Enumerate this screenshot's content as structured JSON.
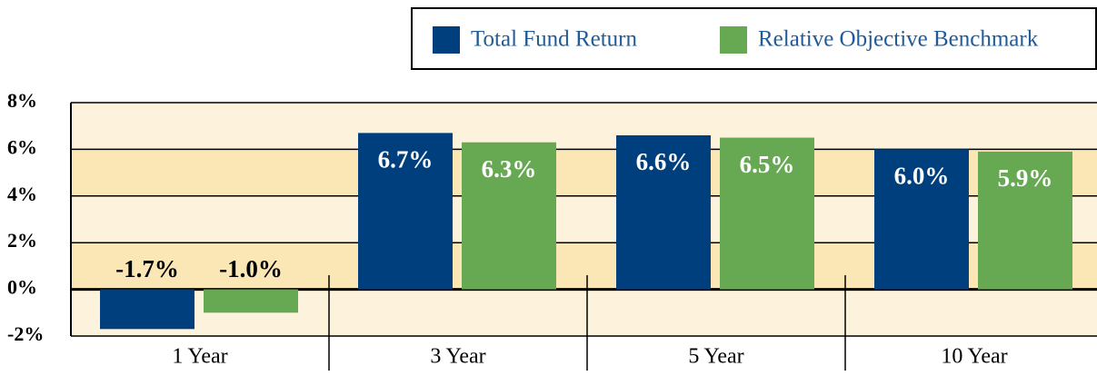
{
  "chart_data": {
    "type": "bar",
    "categories": [
      "1 Year",
      "3 Year",
      "5 Year",
      "10 Year"
    ],
    "series": [
      {
        "name": "Total Fund Return",
        "color": "#003f7d",
        "values": [
          -1.7,
          6.7,
          6.6,
          6.0
        ],
        "value_labels": [
          "-1.7%",
          "6.7%",
          "6.6%",
          "6.0%"
        ]
      },
      {
        "name": "Relative Objective Benchmark",
        "color": "#67a853",
        "values": [
          -1.0,
          6.3,
          6.5,
          5.9
        ],
        "value_labels": [
          "-1.0%",
          "6.3%",
          "6.5%",
          "5.9%"
        ]
      }
    ],
    "ylim": [
      -2,
      8
    ],
    "yticks": [
      {
        "value": -2,
        "label": "-2%"
      },
      {
        "value": 0,
        "label": "0%"
      },
      {
        "value": 2,
        "label": "2%"
      },
      {
        "value": 4,
        "label": "4%"
      },
      {
        "value": 6,
        "label": "6%"
      },
      {
        "value": 8,
        "label": "8%"
      }
    ],
    "grid": true,
    "legend": "top-right"
  }
}
